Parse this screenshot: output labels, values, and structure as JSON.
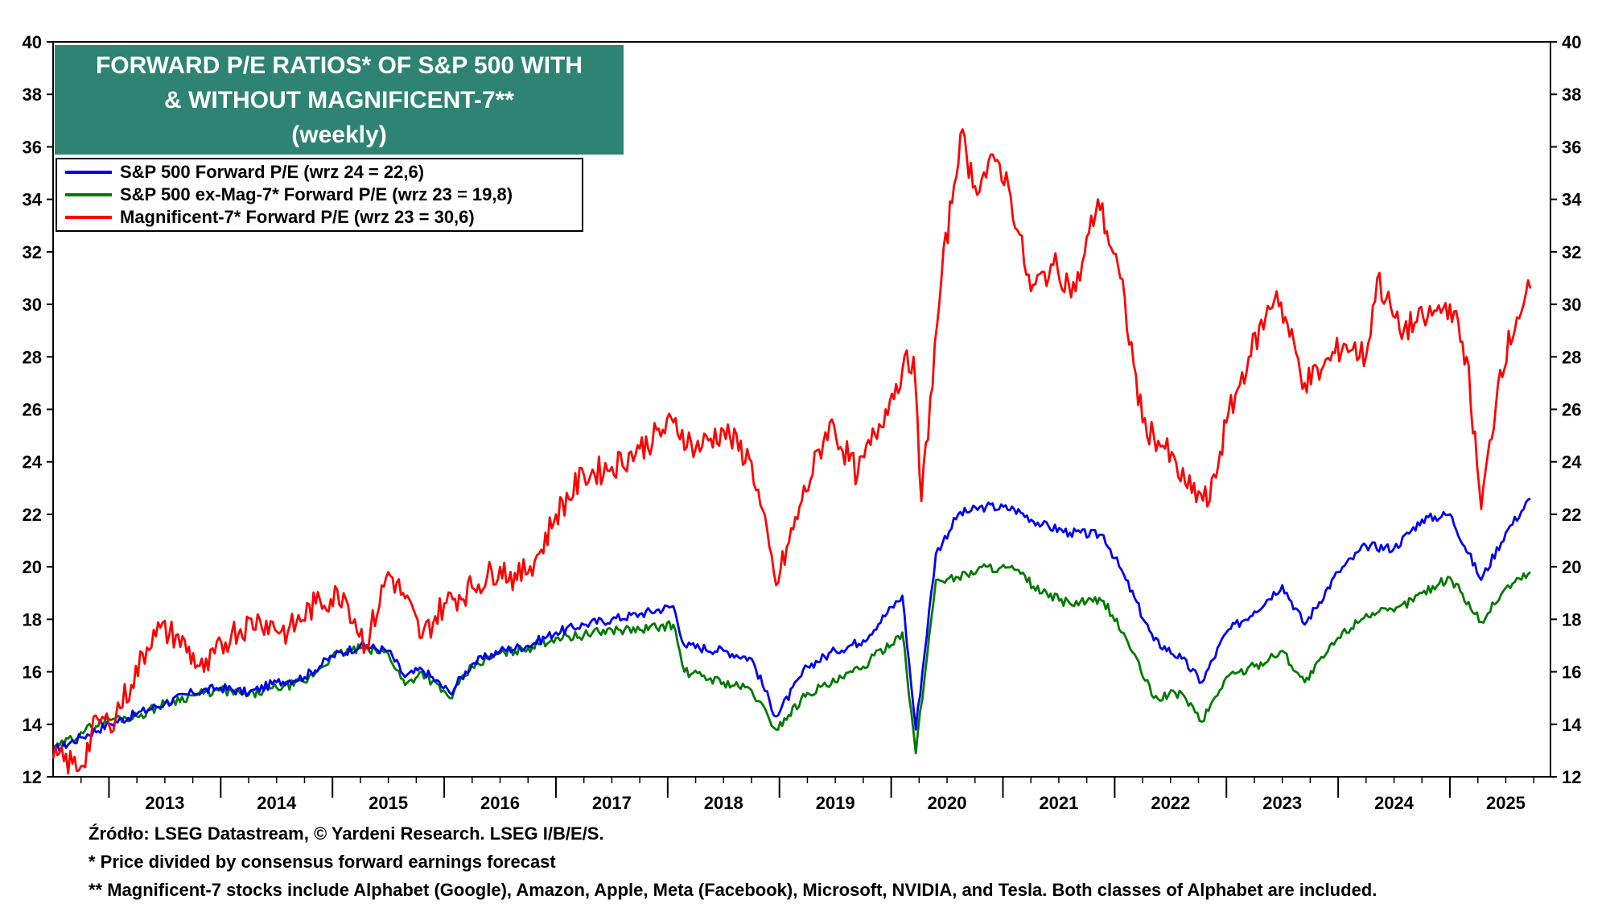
{
  "title": {
    "line1": "FORWARD P/E RATIOS* OF S&P 500 WITH",
    "line2": "& WITHOUT MAGNIFICENT-7**",
    "line3": "(weekly)"
  },
  "legend": [
    {
      "label": "S&P 500 Forward P/E (wrz 24 = 22,6)",
      "color": "#0000ee"
    },
    {
      "label": "S&P 500 ex-Mag-7* Forward P/E (wrz 23 = 19,8)",
      "color": "#007a00"
    },
    {
      "label": "Magnificent-7* Forward P/E (wrz 23 = 30,6)",
      "color": "#ff0000"
    }
  ],
  "footnotes": {
    "source": "Źródło: LSEG Datastream, © Yardeni Research. LSEG I/B/E/S.",
    "note1": "* Price divided by consensus forward earnings forecast",
    "note2": "** Magnificent-7 stocks include Alphabet (Google), Amazon, Apple, Meta (Facebook), Microsoft, NVIDIA, and Tesla. Both classes of Alphabet are included."
  },
  "chart_data": {
    "type": "line",
    "title": "FORWARD P/E RATIOS* OF S&P 500 WITH & WITHOUT MAGNIFICENT-7** (weekly)",
    "ylim": [
      12,
      40
    ],
    "xlim": [
      2012.5,
      2025.9
    ],
    "yticks": [
      12,
      14,
      16,
      18,
      20,
      22,
      24,
      26,
      28,
      30,
      32,
      34,
      36,
      38,
      40
    ],
    "xtick_labels": [
      "2013",
      "2014",
      "2015",
      "2016",
      "2017",
      "2018",
      "2019",
      "2020",
      "2021",
      "2022",
      "2023",
      "2024",
      "2025"
    ],
    "legend_position": "top-left",
    "grid": false,
    "series": [
      {
        "name": "S&P 500 Forward P/E (wrz 24 = 22,6)",
        "color": "#0000ee",
        "points": [
          [
            2012.5,
            13.0
          ],
          [
            2012.75,
            13.5
          ],
          [
            2013.0,
            14.0
          ],
          [
            2013.25,
            14.4
          ],
          [
            2013.5,
            14.8
          ],
          [
            2013.75,
            15.2
          ],
          [
            2014.0,
            15.4
          ],
          [
            2014.25,
            15.2
          ],
          [
            2014.5,
            15.6
          ],
          [
            2014.75,
            15.8
          ],
          [
            2015.0,
            16.6
          ],
          [
            2015.25,
            17.0
          ],
          [
            2015.5,
            16.8
          ],
          [
            2015.65,
            15.8
          ],
          [
            2015.8,
            16.1
          ],
          [
            2016.05,
            15.2
          ],
          [
            2016.25,
            16.3
          ],
          [
            2016.5,
            16.8
          ],
          [
            2016.75,
            17.0
          ],
          [
            2017.0,
            17.5
          ],
          [
            2017.25,
            17.8
          ],
          [
            2017.5,
            18.0
          ],
          [
            2017.75,
            18.2
          ],
          [
            2018.05,
            18.5
          ],
          [
            2018.15,
            17.0
          ],
          [
            2018.5,
            16.8
          ],
          [
            2018.75,
            16.5
          ],
          [
            2018.97,
            14.3
          ],
          [
            2019.25,
            16.2
          ],
          [
            2019.5,
            16.8
          ],
          [
            2019.75,
            17.2
          ],
          [
            2020.1,
            18.9
          ],
          [
            2020.22,
            13.8
          ],
          [
            2020.4,
            20.5
          ],
          [
            2020.6,
            22.0
          ],
          [
            2020.85,
            22.3
          ],
          [
            2021.1,
            22.2
          ],
          [
            2021.35,
            21.6
          ],
          [
            2021.6,
            21.3
          ],
          [
            2021.9,
            21.2
          ],
          [
            2022.1,
            19.5
          ],
          [
            2022.35,
            17.2
          ],
          [
            2022.6,
            16.5
          ],
          [
            2022.78,
            15.6
          ],
          [
            2023.0,
            17.5
          ],
          [
            2023.25,
            18.3
          ],
          [
            2023.5,
            19.3
          ],
          [
            2023.7,
            17.8
          ],
          [
            2024.0,
            19.8
          ],
          [
            2024.25,
            20.8
          ],
          [
            2024.5,
            20.7
          ],
          [
            2024.75,
            21.8
          ],
          [
            2025.0,
            22.0
          ],
          [
            2025.28,
            19.5
          ],
          [
            2025.5,
            21.3
          ],
          [
            2025.72,
            22.6
          ]
        ]
      },
      {
        "name": "S&P 500 ex-Mag-7* Forward P/E (wrz 23 = 19,8)",
        "color": "#007a00",
        "points": [
          [
            2012.5,
            13.0
          ],
          [
            2012.75,
            13.7
          ],
          [
            2013.0,
            14.2
          ],
          [
            2013.25,
            14.3
          ],
          [
            2013.5,
            14.8
          ],
          [
            2013.75,
            15.1
          ],
          [
            2014.0,
            15.3
          ],
          [
            2014.25,
            15.1
          ],
          [
            2014.5,
            15.4
          ],
          [
            2014.75,
            15.6
          ],
          [
            2015.0,
            16.6
          ],
          [
            2015.25,
            16.9
          ],
          [
            2015.5,
            16.7
          ],
          [
            2015.65,
            15.5
          ],
          [
            2015.8,
            16.0
          ],
          [
            2016.05,
            15.0
          ],
          [
            2016.25,
            16.2
          ],
          [
            2016.5,
            16.7
          ],
          [
            2016.75,
            16.9
          ],
          [
            2017.0,
            17.3
          ],
          [
            2017.25,
            17.4
          ],
          [
            2017.5,
            17.6
          ],
          [
            2017.75,
            17.6
          ],
          [
            2018.05,
            17.8
          ],
          [
            2018.15,
            16.0
          ],
          [
            2018.5,
            15.6
          ],
          [
            2018.75,
            15.3
          ],
          [
            2018.97,
            13.8
          ],
          [
            2019.25,
            15.2
          ],
          [
            2019.5,
            15.6
          ],
          [
            2019.75,
            16.2
          ],
          [
            2020.1,
            17.5
          ],
          [
            2020.22,
            12.9
          ],
          [
            2020.4,
            19.5
          ],
          [
            2020.6,
            19.6
          ],
          [
            2020.85,
            20.0
          ],
          [
            2021.1,
            19.9
          ],
          [
            2021.35,
            19.0
          ],
          [
            2021.6,
            18.6
          ],
          [
            2021.9,
            18.7
          ],
          [
            2022.1,
            17.3
          ],
          [
            2022.35,
            15.0
          ],
          [
            2022.6,
            15.2
          ],
          [
            2022.78,
            14.1
          ],
          [
            2023.0,
            15.8
          ],
          [
            2023.25,
            16.2
          ],
          [
            2023.5,
            16.8
          ],
          [
            2023.7,
            15.6
          ],
          [
            2024.0,
            17.3
          ],
          [
            2024.25,
            18.2
          ],
          [
            2024.5,
            18.3
          ],
          [
            2024.75,
            19.0
          ],
          [
            2025.0,
            19.6
          ],
          [
            2025.28,
            17.9
          ],
          [
            2025.5,
            19.2
          ],
          [
            2025.72,
            19.8
          ]
        ]
      },
      {
        "name": "Magnificent-7* Forward P/E (wrz 23 = 30,6)",
        "color": "#ff0000",
        "points": [
          [
            2012.5,
            12.7
          ],
          [
            2012.75,
            12.4
          ],
          [
            2012.9,
            14.2
          ],
          [
            2013.0,
            14.0
          ],
          [
            2013.2,
            15.5
          ],
          [
            2013.4,
            17.6
          ],
          [
            2013.6,
            17.4
          ],
          [
            2013.85,
            16.0
          ],
          [
            2014.1,
            17.5
          ],
          [
            2014.35,
            18.0
          ],
          [
            2014.6,
            17.5
          ],
          [
            2014.85,
            18.6
          ],
          [
            2015.1,
            19.0
          ],
          [
            2015.3,
            17.0
          ],
          [
            2015.5,
            19.8
          ],
          [
            2015.65,
            18.8
          ],
          [
            2015.8,
            17.3
          ],
          [
            2016.0,
            18.6
          ],
          [
            2016.25,
            19.2
          ],
          [
            2016.5,
            20.0
          ],
          [
            2016.65,
            19.5
          ],
          [
            2016.85,
            20.5
          ],
          [
            2017.0,
            22.0
          ],
          [
            2017.25,
            23.5
          ],
          [
            2017.5,
            23.8
          ],
          [
            2017.75,
            24.5
          ],
          [
            2018.05,
            25.5
          ],
          [
            2018.25,
            24.5
          ],
          [
            2018.5,
            25.2
          ],
          [
            2018.75,
            24.0
          ],
          [
            2018.97,
            19.3
          ],
          [
            2019.2,
            22.5
          ],
          [
            2019.45,
            25.5
          ],
          [
            2019.7,
            23.5
          ],
          [
            2019.95,
            26.0
          ],
          [
            2020.1,
            27.5
          ],
          [
            2020.2,
            28.0
          ],
          [
            2020.27,
            22.5
          ],
          [
            2020.45,
            31.0
          ],
          [
            2020.62,
            36.5
          ],
          [
            2020.75,
            34.5
          ],
          [
            2020.95,
            35.5
          ],
          [
            2021.05,
            34.5
          ],
          [
            2021.25,
            30.5
          ],
          [
            2021.45,
            31.5
          ],
          [
            2021.65,
            30.5
          ],
          [
            2021.85,
            34.0
          ],
          [
            2022.05,
            31.0
          ],
          [
            2022.25,
            25.5
          ],
          [
            2022.45,
            24.5
          ],
          [
            2022.65,
            23.0
          ],
          [
            2022.85,
            22.5
          ],
          [
            2023.0,
            25.5
          ],
          [
            2023.2,
            28.0
          ],
          [
            2023.35,
            29.5
          ],
          [
            2023.45,
            30.5
          ],
          [
            2023.7,
            27.0
          ],
          [
            2023.85,
            27.5
          ],
          [
            2024.05,
            28.5
          ],
          [
            2024.25,
            28.0
          ],
          [
            2024.35,
            31.0
          ],
          [
            2024.55,
            29.0
          ],
          [
            2024.8,
            29.5
          ],
          [
            2025.0,
            30.0
          ],
          [
            2025.15,
            28.0
          ],
          [
            2025.28,
            22.2
          ],
          [
            2025.45,
            27.5
          ],
          [
            2025.6,
            29.5
          ],
          [
            2025.72,
            30.6
          ]
        ]
      }
    ]
  }
}
